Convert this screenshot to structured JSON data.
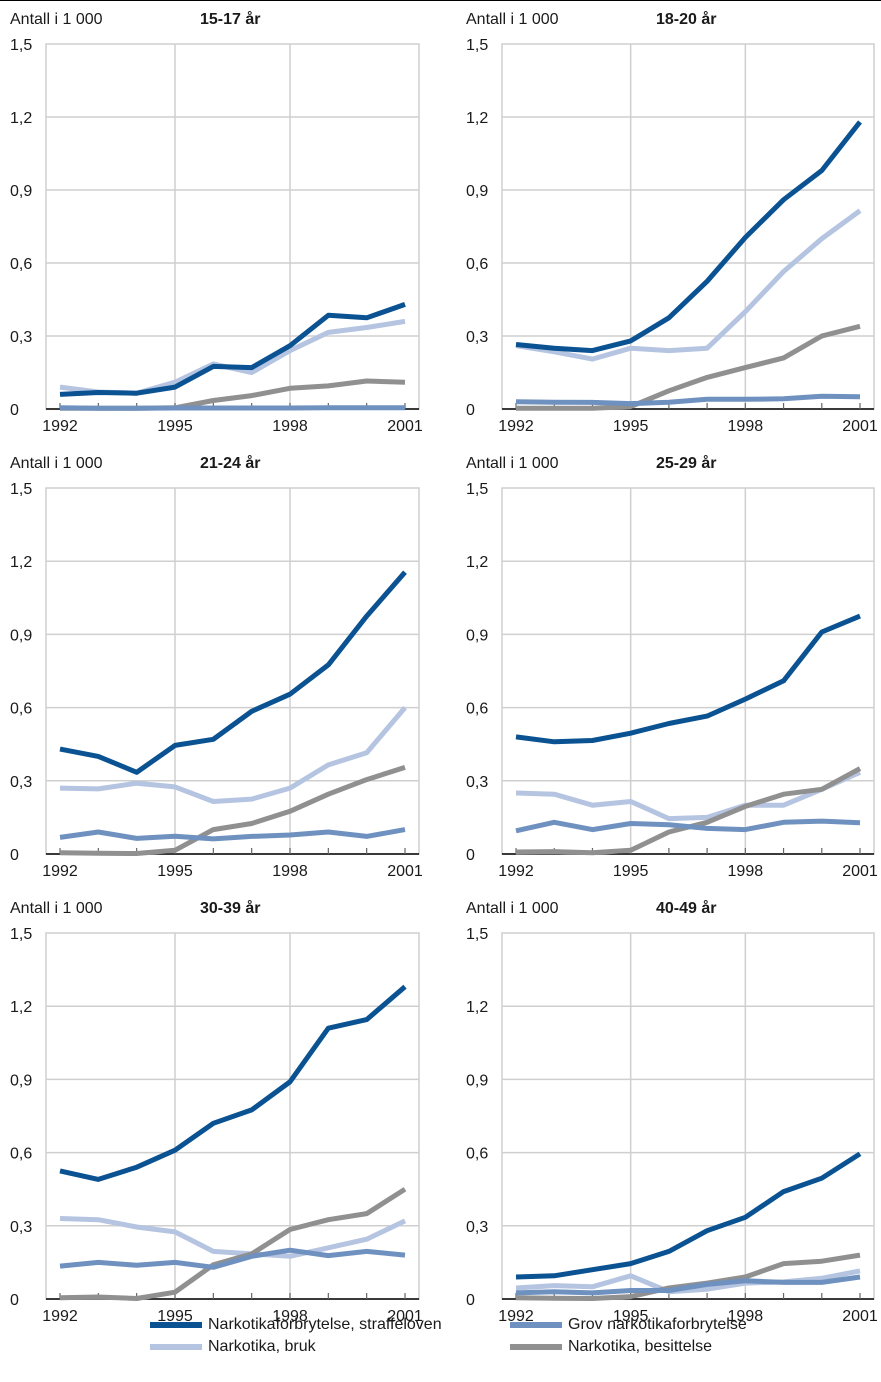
{
  "colors": {
    "narkotikaforbrytelse": "#0a5291",
    "grov": "#6f91c0",
    "bruk": "#b5c4e0",
    "besittelse": "#909090",
    "grid": "#cfcfcf",
    "axis": "#000000"
  },
  "legend": [
    {
      "key": "narkotikaforbrytelse",
      "label": "Narkotikaforbrytelse, straffeloven"
    },
    {
      "key": "grov",
      "label": "Grov narkotikaforbrytelse"
    },
    {
      "key": "bruk",
      "label": "Narkotika, bruk"
    },
    {
      "key": "besittelse",
      "label": "Narkotika, besittelse"
    }
  ],
  "chart_data": [
    {
      "type": "line",
      "title": "15-17 år",
      "ylabel": "Antall i 1 000",
      "x": [
        1992,
        1993,
        1994,
        1995,
        1996,
        1997,
        1998,
        1999,
        2000,
        2001
      ],
      "xticks": [
        "1992",
        "1995",
        "1998",
        "2001"
      ],
      "yticks": [
        "0",
        "0,3",
        "0,6",
        "0,9",
        "1,2",
        "1,5"
      ],
      "ylim": [
        0,
        1.5
      ],
      "grid": true,
      "series": [
        {
          "key": "bruk",
          "values": [
            0.09,
            0.07,
            0.065,
            0.11,
            0.185,
            0.15,
            0.24,
            0.315,
            0.335,
            0.36
          ]
        },
        {
          "key": "besittelse",
          "values": [
            0.003,
            0.003,
            0.003,
            0.005,
            0.035,
            0.055,
            0.085,
            0.095,
            0.115,
            0.11
          ]
        },
        {
          "key": "grov",
          "values": [
            0.005,
            0.003,
            0.003,
            0.004,
            0.004,
            0.004,
            0.004,
            0.005,
            0.005,
            0.005
          ]
        },
        {
          "key": "narkotikaforbrytelse",
          "values": [
            0.06,
            0.068,
            0.065,
            0.09,
            0.175,
            0.17,
            0.26,
            0.385,
            0.375,
            0.43
          ]
        }
      ]
    },
    {
      "type": "line",
      "title": "18-20 år",
      "ylabel": "Antall i 1 000",
      "x": [
        1992,
        1993,
        1994,
        1995,
        1996,
        1997,
        1998,
        1999,
        2000,
        2001
      ],
      "xticks": [
        "1992",
        "1995",
        "1998",
        "2001"
      ],
      "yticks": [
        "0",
        "0,3",
        "0,6",
        "0,9",
        "1,2",
        "1,5"
      ],
      "ylim": [
        0,
        1.5
      ],
      "grid": true,
      "series": [
        {
          "key": "bruk",
          "values": [
            0.26,
            0.235,
            0.205,
            0.25,
            0.24,
            0.25,
            0.4,
            0.565,
            0.7,
            0.815
          ]
        },
        {
          "key": "besittelse",
          "values": [
            0.003,
            0.003,
            0.003,
            0.01,
            0.075,
            0.13,
            0.17,
            0.21,
            0.3,
            0.34
          ]
        },
        {
          "key": "grov",
          "values": [
            0.03,
            0.028,
            0.027,
            0.022,
            0.028,
            0.04,
            0.04,
            0.042,
            0.052,
            0.05
          ]
        },
        {
          "key": "narkotikaforbrytelse",
          "values": [
            0.265,
            0.25,
            0.24,
            0.28,
            0.375,
            0.525,
            0.705,
            0.86,
            0.98,
            1.18
          ]
        }
      ]
    },
    {
      "type": "line",
      "title": "21-24 år",
      "ylabel": "Antall i 1 000",
      "x": [
        1992,
        1993,
        1994,
        1995,
        1996,
        1997,
        1998,
        1999,
        2000,
        2001
      ],
      "xticks": [
        "1992",
        "1995",
        "1998",
        "2001"
      ],
      "yticks": [
        "0",
        "0,3",
        "0,6",
        "0,9",
        "1,2",
        "1,5"
      ],
      "ylim": [
        0,
        1.5
      ],
      "grid": true,
      "series": [
        {
          "key": "bruk",
          "values": [
            0.27,
            0.267,
            0.29,
            0.275,
            0.215,
            0.225,
            0.27,
            0.365,
            0.415,
            0.6
          ]
        },
        {
          "key": "besittelse",
          "values": [
            0.005,
            0.003,
            0.002,
            0.015,
            0.1,
            0.125,
            0.175,
            0.245,
            0.305,
            0.355
          ]
        },
        {
          "key": "grov",
          "values": [
            0.068,
            0.09,
            0.064,
            0.073,
            0.062,
            0.072,
            0.078,
            0.09,
            0.072,
            0.1
          ]
        },
        {
          "key": "narkotikaforbrytelse",
          "values": [
            0.43,
            0.4,
            0.335,
            0.445,
            0.47,
            0.585,
            0.655,
            0.775,
            0.975,
            1.155
          ]
        }
      ]
    },
    {
      "type": "line",
      "title": "25-29 år",
      "ylabel": "Antall i 1 000",
      "x": [
        1992,
        1993,
        1994,
        1995,
        1996,
        1997,
        1998,
        1999,
        2000,
        2001
      ],
      "xticks": [
        "1992",
        "1995",
        "1998",
        "2001"
      ],
      "yticks": [
        "0",
        "0,3",
        "0,6",
        "0,9",
        "1,2",
        "1,5"
      ],
      "ylim": [
        0,
        1.5
      ],
      "grid": true,
      "series": [
        {
          "key": "bruk",
          "values": [
            0.25,
            0.245,
            0.2,
            0.215,
            0.145,
            0.15,
            0.2,
            0.2,
            0.265,
            0.335
          ]
        },
        {
          "key": "besittelse",
          "values": [
            0.008,
            0.01,
            0.005,
            0.015,
            0.09,
            0.13,
            0.195,
            0.245,
            0.265,
            0.35
          ]
        },
        {
          "key": "grov",
          "values": [
            0.095,
            0.13,
            0.1,
            0.125,
            0.12,
            0.105,
            0.1,
            0.13,
            0.135,
            0.128
          ]
        },
        {
          "key": "narkotikaforbrytelse",
          "values": [
            0.48,
            0.46,
            0.465,
            0.495,
            0.535,
            0.565,
            0.635,
            0.71,
            0.91,
            0.975
          ]
        }
      ]
    },
    {
      "type": "line",
      "title": "30-39 år",
      "ylabel": "Antall i 1 000",
      "x": [
        1992,
        1993,
        1994,
        1995,
        1996,
        1997,
        1998,
        1999,
        2000,
        2001
      ],
      "xticks": [
        "1992",
        "1995",
        "1998",
        "2001"
      ],
      "yticks": [
        "0",
        "0,3",
        "0,6",
        "0,9",
        "1,2",
        "1,5"
      ],
      "ylim": [
        0,
        1.5
      ],
      "grid": true,
      "series": [
        {
          "key": "bruk",
          "values": [
            0.33,
            0.325,
            0.295,
            0.275,
            0.195,
            0.185,
            0.175,
            0.21,
            0.245,
            0.32
          ]
        },
        {
          "key": "besittelse",
          "values": [
            0.005,
            0.008,
            0.002,
            0.028,
            0.14,
            0.185,
            0.285,
            0.325,
            0.35,
            0.45
          ]
        },
        {
          "key": "grov",
          "values": [
            0.135,
            0.15,
            0.138,
            0.15,
            0.13,
            0.175,
            0.2,
            0.178,
            0.195,
            0.18
          ]
        },
        {
          "key": "narkotikaforbrytelse",
          "values": [
            0.525,
            0.49,
            0.54,
            0.61,
            0.72,
            0.775,
            0.89,
            1.11,
            1.145,
            1.28
          ]
        }
      ]
    },
    {
      "type": "line",
      "title": "40-49 år",
      "ylabel": "Antall i 1 000",
      "x": [
        1992,
        1993,
        1994,
        1995,
        1996,
        1997,
        1998,
        1999,
        2000,
        2001
      ],
      "xticks": [
        "1992",
        "1995",
        "1998",
        "2001"
      ],
      "yticks": [
        "0",
        "0,3",
        "0,6",
        "0,9",
        "1,2",
        "1,5"
      ],
      "ylim": [
        0,
        1.5
      ],
      "grid": true,
      "series": [
        {
          "key": "bruk",
          "values": [
            0.045,
            0.055,
            0.05,
            0.095,
            0.03,
            0.04,
            0.065,
            0.07,
            0.085,
            0.115
          ]
        },
        {
          "key": "besittelse",
          "values": [
            0.005,
            0.003,
            0.002,
            0.01,
            0.045,
            0.065,
            0.09,
            0.145,
            0.155,
            0.18
          ]
        },
        {
          "key": "grov",
          "values": [
            0.025,
            0.03,
            0.025,
            0.035,
            0.035,
            0.06,
            0.075,
            0.068,
            0.068,
            0.09
          ]
        },
        {
          "key": "narkotikaforbrytelse",
          "values": [
            0.09,
            0.095,
            0.12,
            0.145,
            0.195,
            0.28,
            0.335,
            0.44,
            0.495,
            0.595
          ]
        }
      ]
    }
  ]
}
